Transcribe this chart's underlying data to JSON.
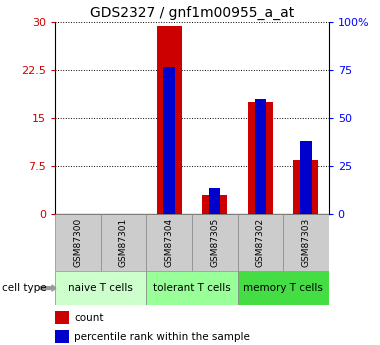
{
  "title": "GDS2327 / gnf1m00955_a_at",
  "samples": [
    "GSM87300",
    "GSM87301",
    "GSM87304",
    "GSM87305",
    "GSM87302",
    "GSM87303"
  ],
  "count_values": [
    0,
    0,
    29.5,
    3.0,
    17.5,
    8.5
  ],
  "percentile_values": [
    0,
    0,
    23.0,
    4.0,
    18.0,
    11.5
  ],
  "ylim_left": [
    0,
    30
  ],
  "yticks_left": [
    0,
    7.5,
    15,
    22.5,
    30
  ],
  "ytick_labels_left": [
    "0",
    "7.5",
    "15",
    "22.5",
    "30"
  ],
  "ytick_labels_right": [
    "0",
    "25",
    "50",
    "75",
    "100%"
  ],
  "cell_groups": [
    {
      "label": "naive T cells",
      "indices": [
        0,
        1
      ],
      "color": "#ccffcc"
    },
    {
      "label": "tolerant T cells",
      "indices": [
        2,
        3
      ],
      "color": "#99ff99"
    },
    {
      "label": "memory T cells",
      "indices": [
        4,
        5
      ],
      "color": "#44dd44"
    }
  ],
  "bar_color_red": "#cc0000",
  "bar_color_blue": "#0000cc",
  "bar_width": 0.55,
  "blue_bar_width": 0.25,
  "grid_color": "black",
  "cell_type_label": "cell type",
  "legend_count": "count",
  "legend_percentile": "percentile rank within the sample",
  "title_fontsize": 10,
  "tick_fontsize": 8,
  "sample_label_fontsize": 6.5,
  "group_label_fontsize": 7.5
}
